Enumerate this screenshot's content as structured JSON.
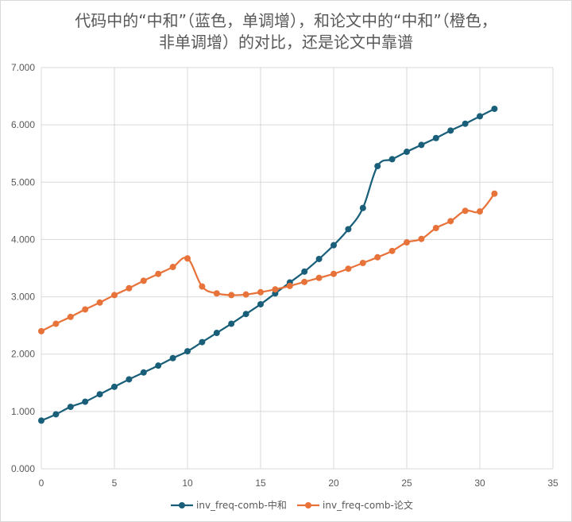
{
  "chart_data": {
    "type": "line",
    "title_lines": [
      "代码中的“中和”（蓝色，单调增），和论文中的“中和”（橙色，",
      "非单调增）的对比，还是论文中靠谱"
    ],
    "xlabel": "",
    "ylabel": "",
    "xlim": [
      0,
      35
    ],
    "ylim": [
      0,
      7
    ],
    "x_ticks": [
      0,
      5,
      10,
      15,
      20,
      25,
      30,
      35
    ],
    "y_ticks": [
      0,
      1,
      2,
      3,
      4,
      5,
      6,
      7
    ],
    "y_tick_labels": [
      "0.000",
      "1.000",
      "2.000",
      "3.000",
      "4.000",
      "5.000",
      "6.000",
      "7.000"
    ],
    "grid": true,
    "legend_position": "bottom",
    "x": [
      0,
      1,
      2,
      3,
      4,
      5,
      6,
      7,
      8,
      9,
      10,
      11,
      12,
      13,
      14,
      15,
      16,
      17,
      18,
      19,
      20,
      21,
      22,
      23,
      24,
      25,
      26,
      27,
      28,
      29,
      30,
      31
    ],
    "series": [
      {
        "name": "inv_freq-comb-中和",
        "color": "#1a5f7a",
        "values": [
          0.84,
          0.95,
          1.08,
          1.17,
          1.3,
          1.43,
          1.56,
          1.68,
          1.8,
          1.93,
          2.05,
          2.21,
          2.37,
          2.53,
          2.7,
          2.87,
          3.06,
          3.25,
          3.44,
          3.66,
          3.9,
          4.18,
          4.55,
          5.28,
          5.4,
          5.53,
          5.65,
          5.77,
          5.9,
          6.02,
          6.15,
          6.28
        ]
      },
      {
        "name": "inv_freq-comb-论文",
        "color": "#e8733a",
        "values": [
          2.4,
          2.53,
          2.65,
          2.78,
          2.9,
          3.03,
          3.15,
          3.28,
          3.4,
          3.52,
          3.67,
          3.18,
          3.06,
          3.03,
          3.04,
          3.08,
          3.13,
          3.19,
          3.26,
          3.33,
          3.4,
          3.49,
          3.59,
          3.69,
          3.8,
          3.95,
          4.01,
          4.2,
          4.32,
          4.5,
          4.49,
          4.8
        ]
      }
    ]
  }
}
